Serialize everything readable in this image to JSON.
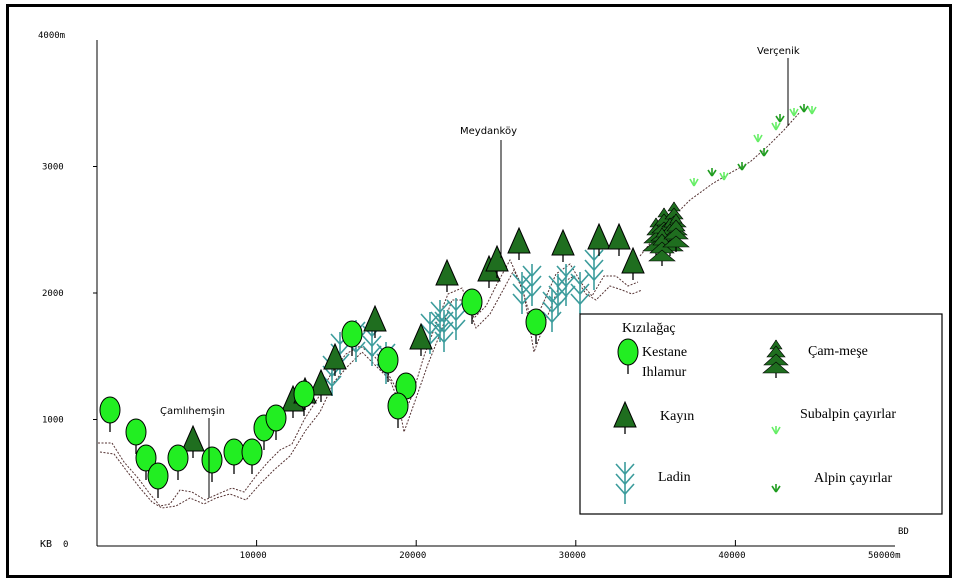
{
  "chart_data": {
    "type": "profile",
    "axes": {
      "y_top_label": "4000m",
      "y_ticks": [
        {
          "value": 1000,
          "label": "1000"
        },
        {
          "value": 2000,
          "label": "2000"
        },
        {
          "value": 3000,
          "label": "3000"
        }
      ],
      "y_ylim": [
        0,
        4000
      ],
      "x_ticks": [
        {
          "value": 10000,
          "label": "10000"
        },
        {
          "value": 20000,
          "label": "20000"
        },
        {
          "value": 30000,
          "label": "30000"
        },
        {
          "value": 40000,
          "label": "40000"
        }
      ],
      "x_end_label": "50000m",
      "x_xlim": [
        0,
        50000
      ],
      "left_end_label": "KB",
      "left_end_zero": "0",
      "right_end_label": "BD"
    },
    "places": [
      {
        "name": "Çamlıhemşin",
        "x": 7000,
        "elevation": 500
      },
      {
        "name": "Meydanköy",
        "x": 25500,
        "elevation": 2450
      },
      {
        "name": "Verçenik",
        "x": 43500,
        "elevation": 3450
      }
    ],
    "legend": [
      {
        "symbol": "deciduous-tree",
        "lines": [
          "Kızılağaç",
          "Kestane",
          "Ihlamur"
        ]
      },
      {
        "symbol": "beech-tree",
        "lines": [
          "Kayın"
        ]
      },
      {
        "symbol": "spruce-tree",
        "lines": [
          "Ladin"
        ]
      },
      {
        "symbol": "pine-oak-tree",
        "lines": [
          "Çam-meşe"
        ]
      },
      {
        "symbol": "subalpine-grass",
        "lines": [
          "Subalpin çayırlar"
        ]
      },
      {
        "symbol": "alpine-grass",
        "lines": [
          "Alpin çayırlar"
        ]
      }
    ],
    "colors": {
      "deciduous": "#22ee22",
      "beech": "#1f6e1f",
      "spruce": "#3c9c9c",
      "grass_light": "#66ee66",
      "grass_dark": "#1f9c1f",
      "terrain": "#553333"
    }
  }
}
